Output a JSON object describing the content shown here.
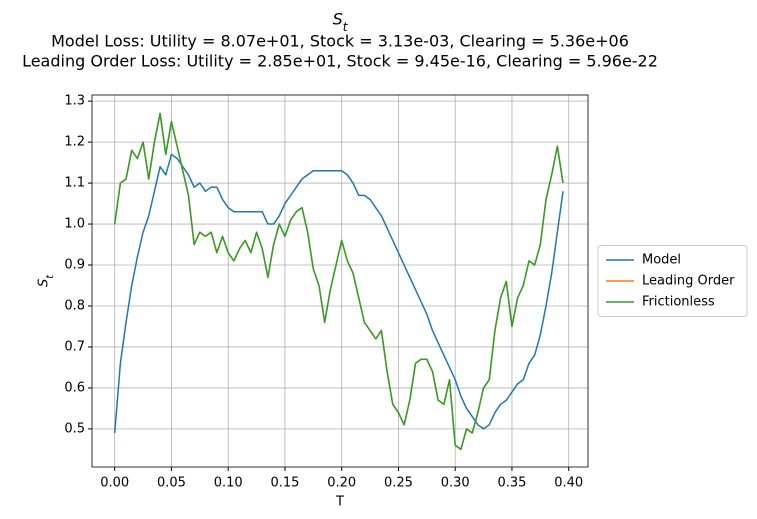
{
  "chart_data": {
    "type": "line",
    "title": "S_t",
    "subtitle": [
      "Model Loss: Utility = 8.07e+01, Stock = 3.13e-03, Clearing = 5.36e+06",
      "Leading Order Loss: Utility = 2.85e+01, Stock = 9.45e-16, Clearing = 5.96e-22"
    ],
    "x_label": "T",
    "y_label": "S_t",
    "x": [
      0,
      0.005,
      0.01,
      0.015,
      0.02,
      0.025,
      0.03,
      0.035,
      0.04,
      0.045,
      0.05,
      0.055,
      0.06,
      0.065,
      0.07,
      0.075,
      0.08,
      0.085,
      0.09,
      0.095,
      0.1,
      0.105,
      0.11,
      0.115,
      0.12,
      0.125,
      0.13,
      0.135,
      0.14,
      0.145,
      0.15,
      0.155,
      0.16,
      0.165,
      0.17,
      0.175,
      0.18,
      0.185,
      0.19,
      0.195,
      0.2,
      0.205,
      0.21,
      0.215,
      0.22,
      0.225,
      0.23,
      0.235,
      0.24,
      0.245,
      0.25,
      0.255,
      0.26,
      0.265,
      0.27,
      0.275,
      0.28,
      0.285,
      0.29,
      0.295,
      0.3,
      0.305,
      0.31,
      0.315,
      0.32,
      0.325,
      0.33,
      0.335,
      0.34,
      0.345,
      0.35,
      0.355,
      0.36,
      0.365,
      0.37,
      0.375,
      0.38,
      0.385,
      0.39,
      0.395
    ],
    "series": [
      {
        "name": "Model",
        "color": "#1f77b4",
        "values": [
          0.49,
          0.66,
          0.76,
          0.85,
          0.92,
          0.98,
          1.02,
          1.08,
          1.14,
          1.12,
          1.17,
          1.16,
          1.14,
          1.12,
          1.09,
          1.1,
          1.08,
          1.09,
          1.09,
          1.06,
          1.04,
          1.03,
          1.03,
          1.03,
          1.03,
          1.03,
          1.03,
          1.0,
          1.0,
          1.02,
          1.05,
          1.07,
          1.09,
          1.11,
          1.12,
          1.13,
          1.13,
          1.13,
          1.13,
          1.13,
          1.13,
          1.12,
          1.1,
          1.07,
          1.07,
          1.06,
          1.04,
          1.02,
          0.99,
          0.96,
          0.93,
          0.9,
          0.87,
          0.84,
          0.81,
          0.78,
          0.74,
          0.71,
          0.68,
          0.65,
          0.62,
          0.58,
          0.55,
          0.53,
          0.51,
          0.5,
          0.51,
          0.54,
          0.56,
          0.57,
          0.59,
          0.61,
          0.62,
          0.66,
          0.68,
          0.73,
          0.8,
          0.88,
          0.98,
          1.08
        ]
      },
      {
        "name": "Leading Order",
        "color": "#ff7f0e",
        "values": [
          1.0,
          1.1,
          1.11,
          1.18,
          1.16,
          1.2,
          1.11,
          1.2,
          1.27,
          1.17,
          1.25,
          1.19,
          1.13,
          1.07,
          0.95,
          0.98,
          0.97,
          0.98,
          0.93,
          0.97,
          0.93,
          0.91,
          0.94,
          0.96,
          0.93,
          0.98,
          0.94,
          0.87,
          0.95,
          1.0,
          0.97,
          1.01,
          1.03,
          1.04,
          0.98,
          0.89,
          0.85,
          0.76,
          0.84,
          0.9,
          0.96,
          0.91,
          0.88,
          0.82,
          0.76,
          0.74,
          0.72,
          0.74,
          0.64,
          0.56,
          0.54,
          0.51,
          0.57,
          0.66,
          0.67,
          0.67,
          0.64,
          0.57,
          0.56,
          0.62,
          0.46,
          0.45,
          0.5,
          0.49,
          0.54,
          0.6,
          0.62,
          0.74,
          0.82,
          0.86,
          0.75,
          0.82,
          0.85,
          0.91,
          0.9,
          0.95,
          1.06,
          1.12,
          1.19,
          1.1
        ]
      },
      {
        "name": "Frictionless",
        "color": "#2ca02c",
        "values": [
          1.0,
          1.1,
          1.11,
          1.18,
          1.16,
          1.2,
          1.11,
          1.2,
          1.27,
          1.17,
          1.25,
          1.19,
          1.13,
          1.07,
          0.95,
          0.98,
          0.97,
          0.98,
          0.93,
          0.97,
          0.93,
          0.91,
          0.94,
          0.96,
          0.93,
          0.98,
          0.94,
          0.87,
          0.95,
          1.0,
          0.97,
          1.01,
          1.03,
          1.04,
          0.98,
          0.89,
          0.85,
          0.76,
          0.84,
          0.9,
          0.96,
          0.91,
          0.88,
          0.82,
          0.76,
          0.74,
          0.72,
          0.74,
          0.64,
          0.56,
          0.54,
          0.51,
          0.57,
          0.66,
          0.67,
          0.67,
          0.64,
          0.57,
          0.56,
          0.62,
          0.46,
          0.45,
          0.5,
          0.49,
          0.54,
          0.6,
          0.62,
          0.74,
          0.82,
          0.86,
          0.75,
          0.82,
          0.85,
          0.91,
          0.9,
          0.95,
          1.06,
          1.12,
          1.19,
          1.1
        ]
      }
    ],
    "xlim": [
      -0.02,
      0.417
    ],
    "ylim": [
      0.407,
      1.315
    ],
    "xticks": [
      {
        "value": 0,
        "label": "0.00"
      },
      {
        "value": 0.05,
        "label": "0.05"
      },
      {
        "value": 0.1,
        "label": "0.10"
      },
      {
        "value": 0.15,
        "label": "0.15"
      },
      {
        "value": 0.2,
        "label": "0.20"
      },
      {
        "value": 0.25,
        "label": "0.25"
      },
      {
        "value": 0.3,
        "label": "0.30"
      },
      {
        "value": 0.35,
        "label": "0.35"
      },
      {
        "value": 0.4,
        "label": "0.40"
      }
    ],
    "yticks": [
      0.5,
      0.6,
      0.7,
      0.8,
      0.9,
      {
        "value": 1,
        "label": "1.0"
      },
      1.1,
      1.2,
      1.3
    ],
    "grid": true,
    "legend": "right"
  }
}
